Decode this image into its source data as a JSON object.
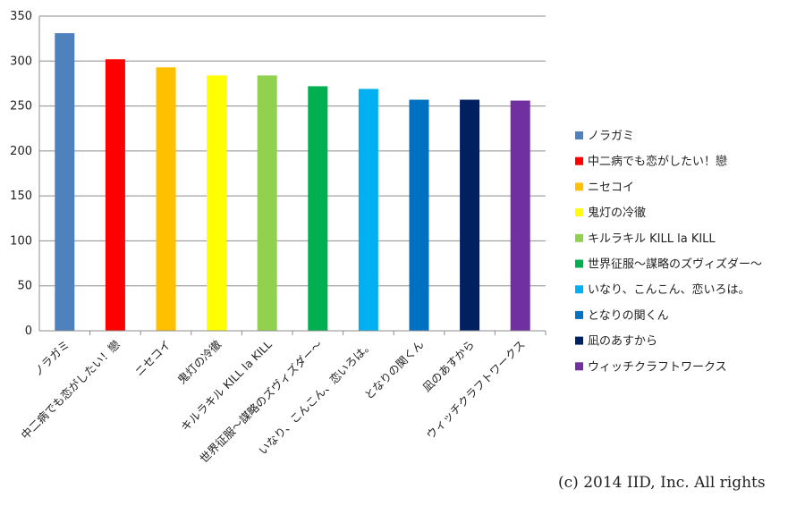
{
  "chart_data": {
    "type": "bar",
    "categories": [
      "ノラガミ",
      "中二病でも恋がしたい！戀",
      "ニセコイ",
      "鬼灯の冷徹",
      "キルラキル KILL la KILL",
      "世界征服～謀略のズヴィズダー～",
      "いなり、こんこん、恋いろは。",
      "となりの関くん",
      "凪のあすから",
      "ウィッチクラフトワークス"
    ],
    "values": [
      331,
      302,
      293,
      284,
      284,
      272,
      269,
      257,
      257,
      256
    ],
    "colors": [
      "#4f81bd",
      "#ff0000",
      "#ffc000",
      "#ffff00",
      "#92d050",
      "#00b050",
      "#00b0f0",
      "#0070c0",
      "#002060",
      "#7030a0"
    ],
    "ylim": [
      0,
      350
    ],
    "yticks": [
      0,
      50,
      100,
      150,
      200,
      250,
      300,
      350
    ],
    "grid": true,
    "legend_position": "right",
    "legend": [
      "ノラガミ",
      "中二病でも恋がしたい！戀",
      "ニセコイ",
      "鬼灯の冷徹",
      "キルラキル KILL la KILL",
      "世界征服～謀略のズヴィズダー～",
      "いなり、こんこん、恋いろは。",
      "となりの関くん",
      "凪のあすから",
      "ウィッチクラフトワークス"
    ]
  },
  "footer": {
    "copyright": "(c) 2014 IID, Inc. All rights"
  }
}
